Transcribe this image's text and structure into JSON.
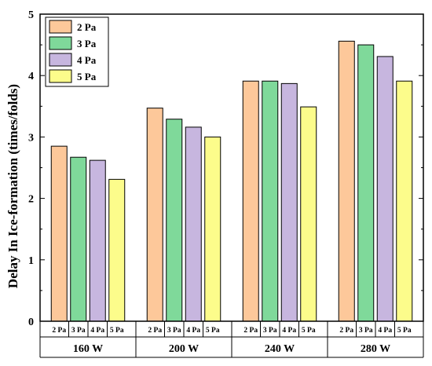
{
  "chart_data": {
    "type": "bar",
    "categories": [
      "160 W",
      "200 W",
      "240 W",
      "280 W"
    ],
    "series": [
      {
        "name": "2 Pa",
        "label": "2 Pa",
        "color": "#FDC89A",
        "values": [
          2.85,
          3.47,
          3.91,
          4.56
        ]
      },
      {
        "name": "3 Pa",
        "label": "3 Pa",
        "color": "#7FD99A",
        "values": [
          2.67,
          3.29,
          3.91,
          4.5
        ]
      },
      {
        "name": "4 Pa",
        "label": "4 Pa",
        "color": "#C7B6DF",
        "values": [
          2.62,
          3.16,
          3.87,
          4.31
        ]
      },
      {
        "name": "5 Pa",
        "label": "5 Pa",
        "color": "#FCFC8B",
        "values": [
          2.31,
          3.0,
          3.49,
          3.91
        ]
      }
    ],
    "title": "",
    "xlabel": "",
    "ylabel": "Delay In Ice-formation (times/folds)",
    "ylim": [
      0,
      5
    ],
    "yticks": [
      "0",
      "1",
      "2",
      "3",
      "4",
      "5"
    ],
    "legend_position": "top-left",
    "grid": false
  }
}
